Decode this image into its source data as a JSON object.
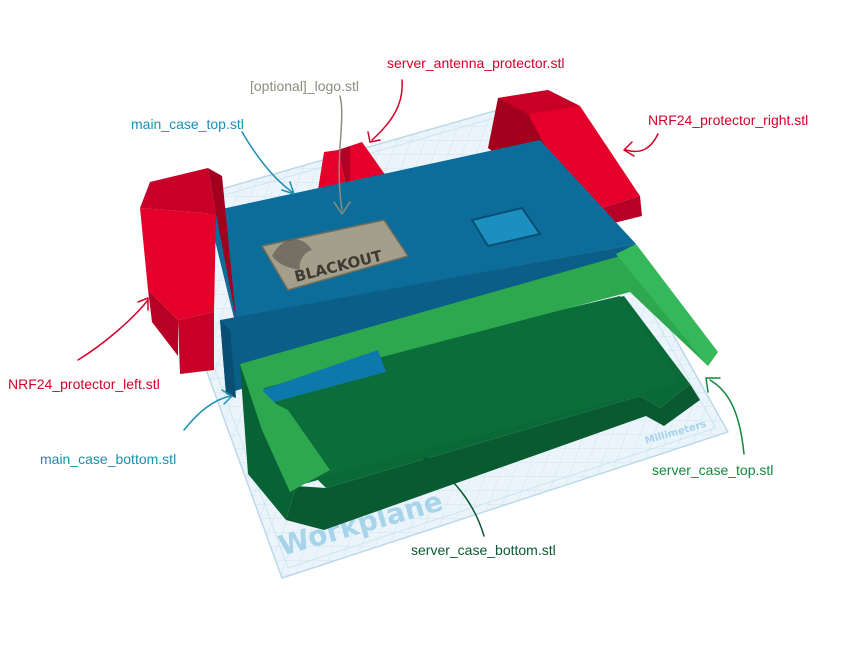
{
  "colors": {
    "protector_red": "#e5002c",
    "case_blue": "#0a6b99",
    "server_green": "#2ea84e",
    "server_dark_green": "#076335",
    "logo_grey": "#9a9a86",
    "label_blue": "#1a8fb0",
    "label_green": "#0f8a3c",
    "label_red": "#d4002a",
    "label_grey": "#8c8c80",
    "workplane_fill": "#e8f3fa",
    "workplane_grid": "#b6d6ea"
  },
  "labels": {
    "server_antenna_protector": "server_antenna_protector.stl",
    "optional_logo": "[optional]_logo.stl",
    "main_case_top": "main_case_top.stl",
    "nrf24_protector_right": "NRF24_protector_right.stl",
    "nrf24_protector_left": "NRF24_protector_left.stl",
    "main_case_bottom": "main_case_bottom.stl",
    "server_case_top": "server_case_top.stl",
    "server_case_bottom": "server_case_bottom.stl"
  },
  "workplane": {
    "title": "Workplane",
    "units": "Millimeters"
  },
  "logo": {
    "text": "BLACKOUT"
  }
}
